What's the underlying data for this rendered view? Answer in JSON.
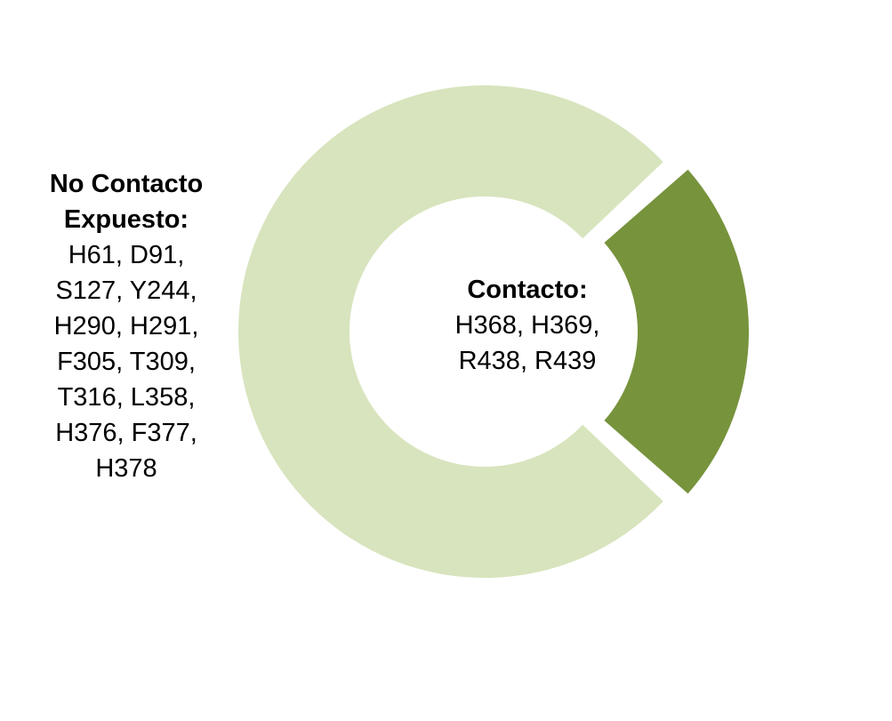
{
  "chart_data": {
    "type": "pie",
    "variant": "doughnut",
    "exploded_slice": "Contacto",
    "slices": [
      {
        "name": "Contacto",
        "title": "Contacto:",
        "lines": [
          "H368, H369,",
          "R438, R439"
        ],
        "residue_count": 4,
        "color": "#77933c"
      },
      {
        "name": "No Contacto Expuesto",
        "title_lines": [
          "No Contacto",
          "Expuesto:"
        ],
        "lines": [
          "H61, D91,",
          "S127, Y244,",
          "H290, H291,",
          "F305, T309,",
          "T316, L358,",
          "H376, F377,",
          "H378"
        ],
        "residue_count": 13,
        "color": "#d7e4bd"
      }
    ]
  }
}
